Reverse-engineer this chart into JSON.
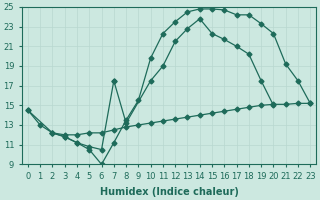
{
  "xlabel": "Humidex (Indice chaleur)",
  "bg_color": "#cce8e0",
  "grid_color": "#b8d8d0",
  "line_color": "#1e6b5a",
  "xlim": [
    -0.5,
    23.5
  ],
  "ylim": [
    9,
    25
  ],
  "xticks": [
    0,
    1,
    2,
    3,
    4,
    5,
    6,
    7,
    8,
    9,
    10,
    11,
    12,
    13,
    14,
    15,
    16,
    17,
    18,
    19,
    20,
    21,
    22,
    23
  ],
  "yticks": [
    9,
    11,
    13,
    15,
    17,
    19,
    21,
    23,
    25
  ],
  "line1_x": [
    0,
    1,
    2,
    3,
    4,
    5,
    6,
    7,
    8,
    9,
    10,
    11,
    12,
    13,
    14,
    15,
    16,
    17,
    18,
    19,
    20,
    21,
    22,
    23
  ],
  "line1_y": [
    14.5,
    13.0,
    12.2,
    11.8,
    11.2,
    10.5,
    9.0,
    11.2,
    13.5,
    15.5,
    19.8,
    22.3,
    23.5,
    24.5,
    24.8,
    24.8,
    24.7,
    24.2,
    24.2,
    23.3,
    22.3,
    19.2,
    17.5,
    15.2
  ],
  "line2_x": [
    2,
    3,
    4,
    5,
    6,
    7,
    8,
    10,
    11,
    12,
    13,
    14,
    15,
    16,
    17,
    18,
    19,
    20,
    21,
    22,
    23
  ],
  "line2_y": [
    12.2,
    11.8,
    11.2,
    10.8,
    10.5,
    17.5,
    13.2,
    17.5,
    19.0,
    21.5,
    22.8,
    23.8,
    22.3,
    21.7,
    21.0,
    20.2,
    17.5,
    15.0,
    null,
    null,
    null
  ],
  "line3_x": [
    0,
    2,
    3,
    4,
    5,
    6,
    7,
    8,
    9,
    10,
    11,
    12,
    13,
    14,
    15,
    16,
    17,
    18,
    19,
    20,
    21,
    22,
    23
  ],
  "line3_y": [
    14.5,
    12.2,
    12.0,
    12.0,
    12.2,
    12.2,
    12.5,
    12.8,
    13.0,
    13.2,
    13.4,
    13.6,
    13.8,
    14.0,
    14.2,
    14.4,
    14.6,
    14.8,
    15.0,
    15.1,
    15.1,
    15.2,
    15.2
  ]
}
